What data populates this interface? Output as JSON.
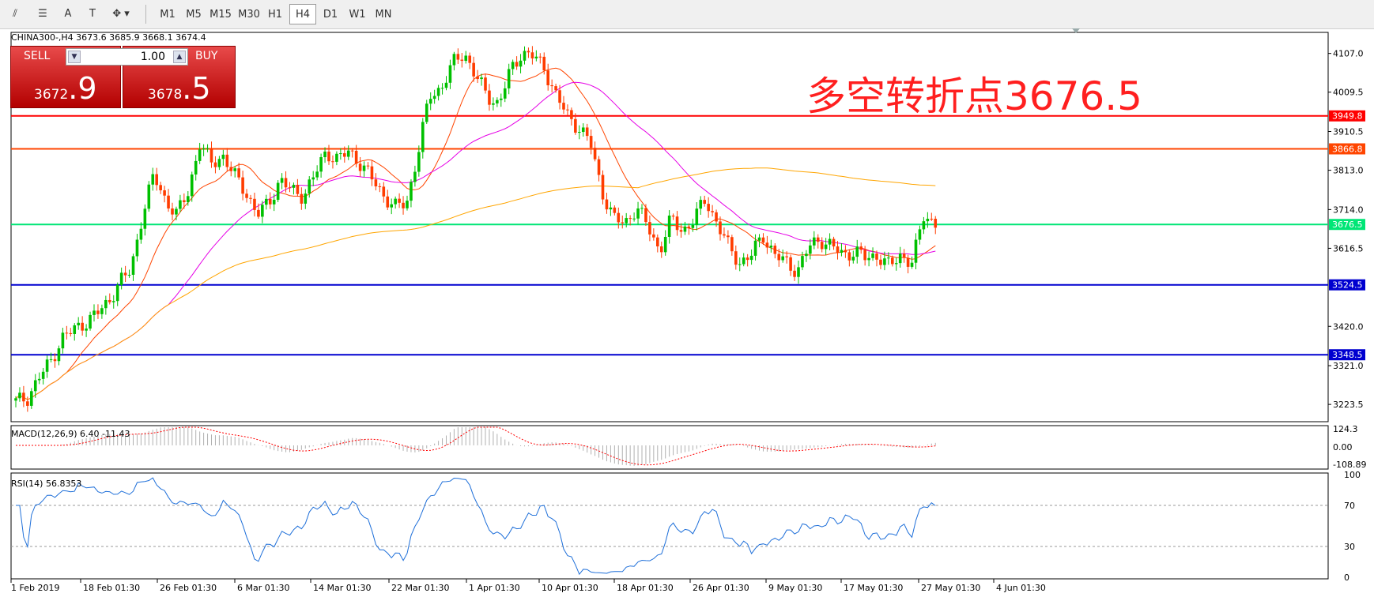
{
  "toolbar": {
    "tools": [
      {
        "name": "fibonacci-tool-icon",
        "glyph": "⫽"
      },
      {
        "name": "fibonacci-fan-icon",
        "glyph": "☰"
      },
      {
        "name": "text-tool-icon",
        "glyph": "A"
      },
      {
        "name": "text-label-tool-icon",
        "glyph": "T"
      },
      {
        "name": "arrow-tool-icon",
        "glyph": "✥"
      }
    ],
    "timeframes": [
      "M1",
      "M5",
      "M15",
      "M30",
      "H1",
      "H4",
      "D1",
      "W1",
      "MN"
    ],
    "active": "H4"
  },
  "chart": {
    "header": "CHINA300-,H4  3673.6 3685.9 3668.1 3674.4",
    "annotation": "多空转折点3676.5"
  },
  "trade": {
    "sell_label": "SELL",
    "buy_label": "BUY",
    "volume": "1.00",
    "sell_big": "3672",
    "sell_small": ".9",
    "buy_big": "3678",
    "buy_small": ".5",
    "color": "#c70f0f"
  },
  "macd": {
    "label": "MACD(12,26,9) 6.40 -11.43",
    "ticks": [
      "124.3",
      "0.00",
      "-108.89"
    ]
  },
  "rsi": {
    "label": "RSI(14) 56.8353",
    "ticks": [
      "100",
      "70",
      "30",
      "0"
    ]
  },
  "chart_data": {
    "type": "candlestick",
    "symbol": "CHINA300-",
    "timeframe": "H4",
    "price_ticks": [
      "4107.0",
      "4009.5",
      "3910.5",
      "3813.0",
      "3714.0",
      "3616.5",
      "3420.0",
      "3321.0",
      "3223.5"
    ],
    "date_ticks": [
      "1 Feb 2019",
      "18 Feb 01:30",
      "26 Feb 01:30",
      "6 Mar 01:30",
      "14 Mar 01:30",
      "22 Mar 01:30",
      "1 Apr 01:30",
      "10 Apr 01:30",
      "18 Apr 01:30",
      "26 Apr 01:30",
      "9 May 01:30",
      "17 May 01:30",
      "27 May 01:30",
      "4 Jun 01:30"
    ],
    "levels": [
      {
        "value": "3949.8",
        "color": "#ff0000"
      },
      {
        "value": "3866.8",
        "color": "#ff4500"
      },
      {
        "value": "3676.5",
        "color": "#00e676"
      },
      {
        "value": "3524.5",
        "color": "#0000d0"
      },
      {
        "value": "3348.5",
        "color": "#0000d0"
      }
    ],
    "ylim": [
      3180,
      4160
    ],
    "anchors": [
      3230,
      3240,
      3290,
      3330,
      3390,
      3410,
      3430,
      3450,
      3480,
      3530,
      3560,
      3700,
      3800,
      3740,
      3700,
      3760,
      3880,
      3830,
      3850,
      3800,
      3760,
      3700,
      3730,
      3790,
      3760,
      3750,
      3800,
      3860,
      3840,
      3860,
      3830,
      3790,
      3750,
      3720,
      3730,
      3860,
      4000,
      4020,
      4080,
      4110,
      4050,
      4000,
      3980,
      4060,
      4110,
      4100,
      4070,
      4000,
      3950,
      3920,
      3880,
      3760,
      3690,
      3680,
      3720,
      3670,
      3610,
      3690,
      3660,
      3690,
      3740,
      3680,
      3620,
      3580,
      3600,
      3650,
      3600,
      3580,
      3560,
      3620,
      3640,
      3620,
      3600,
      3610,
      3590,
      3600,
      3570,
      3600,
      3580,
      3700,
      3680
    ],
    "n": 236,
    "ma_colors": [
      "#ff4500",
      "#e600e6",
      "#ffa500"
    ],
    "macd_color": "#ff0000",
    "rsi_color": "#1e6fd9",
    "bull_color": "#00c000",
    "bear_color": "#ff3c00"
  }
}
